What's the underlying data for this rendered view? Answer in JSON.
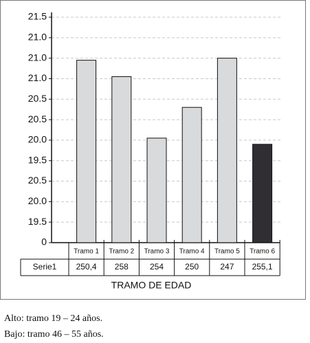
{
  "chart_data": {
    "type": "bar",
    "x_label": "TRAMO DE EDAD",
    "categories": [
      "Tramo 1",
      "Tramo 2",
      "Tramo 3",
      "Tramo 4",
      "Tramo 5",
      "Tramo 6"
    ],
    "values": [
      8.9,
      8.1,
      5.1,
      6.6,
      9.0,
      4.8
    ],
    "colors": [
      "#d8dadb",
      "#d8dadb",
      "#d8dadb",
      "#d8dadb",
      "#d8dadb",
      "#302e33"
    ],
    "ylim": [
      0,
      11
    ],
    "yticks": [
      0,
      {
        "value": 1,
        "label": "19.5"
      },
      {
        "value": 2,
        "label": "20.0"
      },
      {
        "value": 3,
        "label": "20.5"
      },
      {
        "value": 4,
        "label": "19.5"
      },
      {
        "value": 5,
        "label": "20.0"
      },
      {
        "value": 6,
        "label": "20.5"
      },
      {
        "value": 7,
        "label": "20.5"
      },
      {
        "value": 8,
        "label": "21.0"
      },
      {
        "value": 9,
        "label": "21.0"
      },
      {
        "value": 10,
        "label": "21.0"
      },
      {
        "value": 11,
        "label": "21.5"
      }
    ],
    "grid": true,
    "table": {
      "series_name": "Serie1",
      "cells": [
        "250,4",
        "258",
        "254",
        "250",
        "247",
        "255,1"
      ]
    }
  },
  "notes": [
    "Alto: tramo 19 – 24 años.",
    "Bajo: tramo 46 – 55 años."
  ]
}
